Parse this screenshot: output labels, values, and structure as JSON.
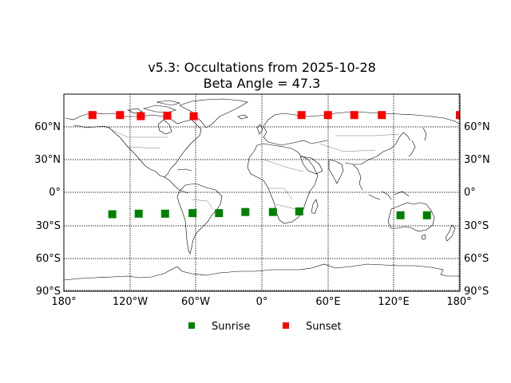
{
  "chart_data": {
    "type": "scatter",
    "title": "v5.3: Occultations from 2025-10-28",
    "subtitle": "Beta Angle = 47.3",
    "projection": "cylindrical world map",
    "xlabel": "",
    "ylabel": "",
    "xlim": [
      -180,
      180
    ],
    "ylim": [
      -90,
      90
    ],
    "grid": true,
    "legend_position": "below",
    "x_tick_labels": [
      "180°",
      "120°W",
      "60°W",
      "0°",
      "60°E",
      "120°E",
      "180°"
    ],
    "y_tick_labels_left": [
      "90°S",
      "60°S",
      "30°S",
      "0°",
      "30°N",
      "60°N"
    ],
    "y_tick_labels_right": [
      "90°S",
      "60°S",
      "30°S",
      "0°",
      "30°N",
      "60°N"
    ],
    "series": [
      {
        "name": "Sunrise",
        "color": "#008000",
        "marker": "square",
        "points": [
          {
            "lon": -136,
            "lat": -20
          },
          {
            "lon": -112,
            "lat": -19.5
          },
          {
            "lon": -88,
            "lat": -19.5
          },
          {
            "lon": -63,
            "lat": -19
          },
          {
            "lon": -39,
            "lat": -19
          },
          {
            "lon": -15,
            "lat": -18
          },
          {
            "lon": 10,
            "lat": -18
          },
          {
            "lon": 34,
            "lat": -17.5
          },
          {
            "lon": 126,
            "lat": -21
          },
          {
            "lon": 150,
            "lat": -21
          }
        ]
      },
      {
        "name": "Sunset",
        "color": "#ff0000",
        "marker": "square",
        "points": [
          {
            "lon": -154,
            "lat": 70.5
          },
          {
            "lon": -129,
            "lat": 70.5
          },
          {
            "lon": -110,
            "lat": 69.5
          },
          {
            "lon": -86,
            "lat": 70
          },
          {
            "lon": -62,
            "lat": 69.5
          },
          {
            "lon": 36,
            "lat": 70.5
          },
          {
            "lon": 60,
            "lat": 70.5
          },
          {
            "lon": 84,
            "lat": 70.5
          },
          {
            "lon": 109,
            "lat": 70.5
          },
          {
            "lon": 180,
            "lat": 70.5
          }
        ]
      }
    ]
  },
  "title": {
    "line1": "v5.3: Occultations from 2025-10-28",
    "line2": "Beta Angle = 47.3"
  },
  "axes": {
    "x_ticks": [
      "180°",
      "120°W",
      "60°W",
      "0°",
      "60°E",
      "120°E",
      "180°"
    ],
    "y_ticks_left": [
      "90°S",
      "60°S",
      "30°S",
      "0°",
      "30°N",
      "60°N"
    ],
    "y_ticks_right": [
      "90°S",
      "60°S",
      "30°S",
      "0°",
      "30°N",
      "60°N"
    ]
  },
  "legend": {
    "items": [
      {
        "label": "Sunrise",
        "color": "#008000"
      },
      {
        "label": "Sunset",
        "color": "#ff0000"
      }
    ]
  }
}
